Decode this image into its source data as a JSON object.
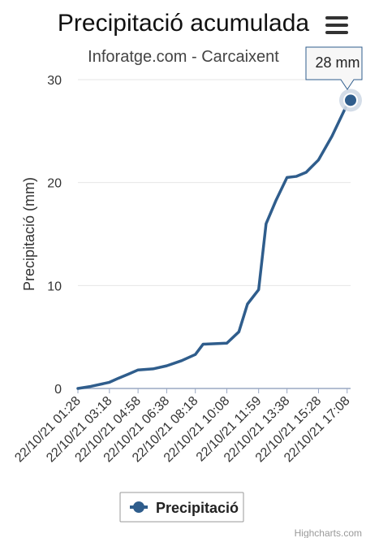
{
  "chart_data": {
    "type": "line",
    "title": "Precipitació acumulada",
    "subtitle": "Inforatge.com - Carcaixent",
    "xlabel": "",
    "ylabel": "Precipitació (mm)",
    "ylim": [
      0,
      30
    ],
    "y_ticks": [
      0,
      10,
      20,
      30
    ],
    "x_tick_labels": [
      "22/10/21 01:28",
      "22/10/21 03:18",
      "22/10/21 04:58",
      "22/10/21 06:38",
      "22/10/21 08:18",
      "22/10/21 10:08",
      "22/10/21 11:59",
      "22/10/21 13:38",
      "22/10/21 15:28",
      "22/10/21 17:08"
    ],
    "grid": true,
    "legend_position": "bottom-center",
    "series": [
      {
        "name": "Precipitació",
        "color": "#2f5d8c",
        "points": [
          {
            "x": "22/10/21 01:28",
            "y": 0.0
          },
          {
            "x": "22/10/21 02:13",
            "y": 0.2
          },
          {
            "x": "22/10/21 03:18",
            "y": 0.6
          },
          {
            "x": "22/10/21 03:50",
            "y": 1.0
          },
          {
            "x": "22/10/21 04:25",
            "y": 1.4
          },
          {
            "x": "22/10/21 04:58",
            "y": 1.8
          },
          {
            "x": "22/10/21 05:50",
            "y": 1.9
          },
          {
            "x": "22/10/21 06:38",
            "y": 2.2
          },
          {
            "x": "22/10/21 07:30",
            "y": 2.7
          },
          {
            "x": "22/10/21 08:18",
            "y": 3.3
          },
          {
            "x": "22/10/21 08:45",
            "y": 4.3
          },
          {
            "x": "22/10/21 10:08",
            "y": 4.4
          },
          {
            "x": "22/10/21 10:50",
            "y": 5.5
          },
          {
            "x": "22/10/21 11:20",
            "y": 8.2
          },
          {
            "x": "22/10/21 11:59",
            "y": 9.6
          },
          {
            "x": "22/10/21 12:25",
            "y": 16.0
          },
          {
            "x": "22/10/21 13:00",
            "y": 18.3
          },
          {
            "x": "22/10/21 13:38",
            "y": 20.5
          },
          {
            "x": "22/10/21 14:10",
            "y": 20.6
          },
          {
            "x": "22/10/21 14:45",
            "y": 21.0
          },
          {
            "x": "22/10/21 15:28",
            "y": 22.2
          },
          {
            "x": "22/10/21 16:15",
            "y": 24.5
          },
          {
            "x": "22/10/21 17:08",
            "y": 27.6
          },
          {
            "x": "22/10/21 17:20",
            "y": 28.0
          }
        ]
      }
    ],
    "tooltip": {
      "text": "28 mm"
    }
  },
  "ui": {
    "menu_icon": "hamburger-menu-icon",
    "credits": "Highcharts.com"
  }
}
